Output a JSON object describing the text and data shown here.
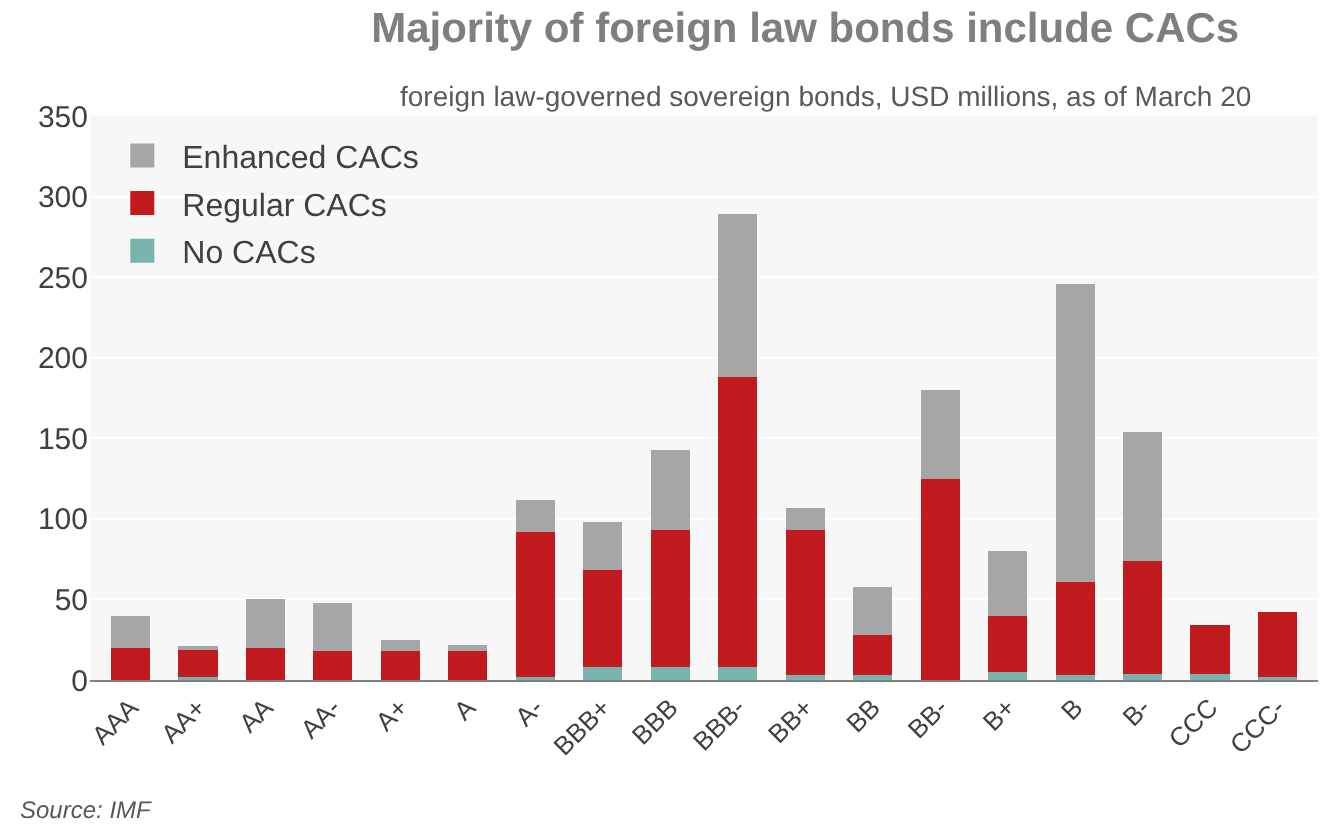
{
  "chart_data": {
    "type": "bar",
    "stacked": true,
    "title": "Majority of foreign law bonds include CACs",
    "subtitle": "foreign law-governed sovereign bonds, USD millions, as of March 20",
    "categories": [
      "AAA",
      "AA+",
      "AA",
      "AA-",
      "A+",
      "A",
      "A-",
      "BBB+",
      "BBB",
      "BBB-",
      "BB+",
      "BB",
      "BB-",
      "B+",
      "B",
      "B-",
      "CCC",
      "CCC-"
    ],
    "series": [
      {
        "name": "No CACs",
        "color": "#7ab2ae",
        "values": [
          0,
          2,
          0,
          0,
          0,
          0,
          2,
          8,
          8,
          8,
          3,
          3,
          0,
          5,
          3,
          4,
          4,
          2
        ]
      },
      {
        "name": "Regular CACs",
        "color": "#c21b1f",
        "values": [
          20,
          17,
          20,
          18,
          18,
          18,
          90,
          60,
          85,
          180,
          90,
          25,
          125,
          35,
          58,
          70,
          30,
          40
        ]
      },
      {
        "name": "Enhanced CACs",
        "color": "#a6a6a6",
        "values": [
          20,
          1,
          30,
          30,
          7,
          4,
          20,
          30,
          50,
          101,
          14,
          30,
          55,
          40,
          185,
          80,
          0,
          0
        ]
      }
    ],
    "ylim": [
      0,
      350
    ],
    "yticks": [
      0,
      50,
      100,
      150,
      200,
      250,
      300,
      350
    ],
    "grid": "y",
    "legend": "top left",
    "annotations": [
      "Source: IMF"
    ]
  }
}
